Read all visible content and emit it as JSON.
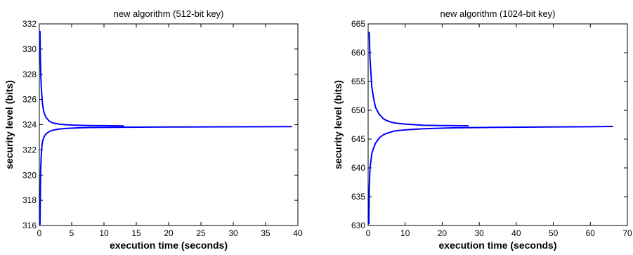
{
  "chart_data": [
    {
      "type": "line",
      "title": "new algorithm (512-bit key)",
      "xlabel": "execution time (seconds)",
      "ylabel": "security level (bits)",
      "xlim": [
        0,
        40
      ],
      "ylim": [
        316,
        332
      ],
      "xticks": [
        0,
        5,
        10,
        15,
        20,
        25,
        30,
        35,
        40
      ],
      "yticks": [
        316,
        318,
        320,
        322,
        324,
        326,
        328,
        330,
        332
      ],
      "grid": false,
      "line_color": "#0000ff",
      "series": [
        {
          "x": [
            0.1,
            0.15,
            0.2,
            0.3,
            0.4,
            0.5,
            0.7,
            1.0,
            1.5,
            2.0,
            3.0,
            4.0,
            5.0,
            6.0,
            8.0,
            10.0,
            13.0
          ],
          "y": [
            331.4,
            329.5,
            328.3,
            327.0,
            326.2,
            325.6,
            325.0,
            324.6,
            324.3,
            324.15,
            324.05,
            324.0,
            323.97,
            323.95,
            323.93,
            323.92,
            323.9
          ]
        },
        {
          "x": [
            0.1,
            0.15,
            0.2,
            0.3,
            0.4,
            0.5,
            0.7,
            1.0,
            1.5,
            2.0,
            3.0,
            4.0,
            6.0,
            8.0,
            13.0,
            20.0,
            30.0,
            39.0
          ],
          "y": [
            316.1,
            318.1,
            320.4,
            321.6,
            322.3,
            322.7,
            323.0,
            323.25,
            323.45,
            323.55,
            323.65,
            323.7,
            323.75,
            323.78,
            323.8,
            323.82,
            323.83,
            323.85
          ]
        }
      ]
    },
    {
      "type": "line",
      "title": "new algorithm (1024-bit key)",
      "xlabel": "execution time (seconds)",
      "ylabel": "security level (bits)",
      "xlim": [
        0,
        70
      ],
      "ylim": [
        630,
        665
      ],
      "xticks": [
        0,
        10,
        20,
        30,
        40,
        50,
        60,
        70
      ],
      "yticks": [
        630,
        635,
        640,
        645,
        650,
        655,
        660,
        665
      ],
      "grid": false,
      "line_color": "#0000ff",
      "series": [
        {
          "x": [
            0.3,
            0.5,
            0.8,
            1.0,
            1.5,
            2.0,
            3.0,
            4.0,
            5.0,
            7.0,
            10.0,
            15.0,
            20.0,
            27.0
          ],
          "y": [
            663.5,
            659.0,
            656.0,
            654.0,
            652.0,
            650.5,
            649.3,
            648.6,
            648.2,
            647.8,
            647.6,
            647.4,
            647.35,
            647.3
          ]
        },
        {
          "x": [
            0.2,
            0.3,
            0.5,
            0.8,
            1.0,
            1.5,
            2.0,
            3.0,
            4.0,
            5.0,
            7.0,
            10.0,
            15.0,
            23.0,
            35.0,
            48.0,
            60.0,
            66.0
          ],
          "y": [
            630.3,
            636.5,
            640.0,
            641.5,
            642.5,
            643.5,
            644.3,
            645.2,
            645.7,
            646.0,
            646.4,
            646.6,
            646.8,
            646.95,
            647.05,
            647.1,
            647.15,
            647.2
          ]
        }
      ]
    }
  ]
}
